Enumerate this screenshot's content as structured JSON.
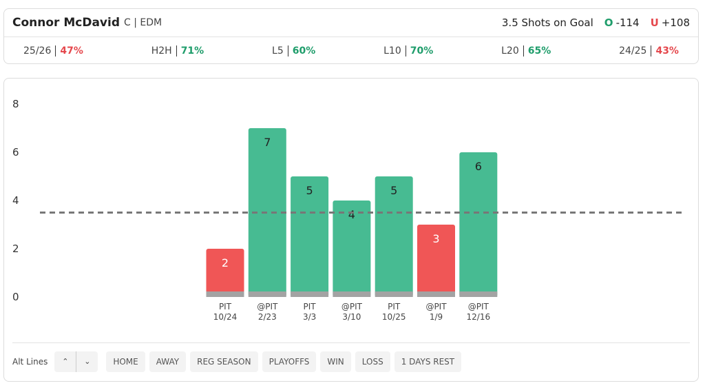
{
  "header": {
    "player": "Connor McDavid",
    "position": "C | EDM",
    "prop": "3.5 Shots on Goal",
    "over": {
      "label": "O",
      "odds": "-114"
    },
    "under": {
      "label": "U",
      "odds": "+108"
    }
  },
  "stats": [
    {
      "label": "25/26",
      "value": "47%",
      "color": "#e5484d"
    },
    {
      "label": "H2H",
      "value": "71%",
      "color": "#1f9d6b"
    },
    {
      "label": "L5",
      "value": "60%",
      "color": "#1f9d6b"
    },
    {
      "label": "L10",
      "value": "70%",
      "color": "#1f9d6b"
    },
    {
      "label": "L20",
      "value": "65%",
      "color": "#1f9d6b"
    },
    {
      "label": "24/25",
      "value": "43%",
      "color": "#e5484d"
    }
  ],
  "chart_data": {
    "type": "bar",
    "categories": [
      [
        "PIT",
        "10/24"
      ],
      [
        "@PIT",
        "2/23"
      ],
      [
        "PIT",
        "3/3"
      ],
      [
        "@PIT",
        "3/10"
      ],
      [
        "PIT",
        "10/25"
      ],
      [
        "@PIT",
        "1/9"
      ],
      [
        "@PIT",
        "12/16"
      ]
    ],
    "values": [
      2,
      7,
      5,
      4,
      5,
      3,
      6
    ],
    "colors": [
      "#f05656",
      "#47bb92",
      "#47bb92",
      "#47bb92",
      "#47bb92",
      "#f05656",
      "#47bb92"
    ],
    "label_colors": [
      "#ffffff",
      "#222222",
      "#222222",
      "#222222",
      "#222222",
      "#ffffff",
      "#222222"
    ],
    "line": 3.5,
    "ylim": [
      0,
      8
    ],
    "yticks": [
      0,
      2,
      4,
      6,
      8
    ]
  },
  "footer": {
    "alt_lines": "Alt Lines",
    "filters": [
      "HOME",
      "AWAY",
      "REG SEASON",
      "PLAYOFFS",
      "WIN",
      "LOSS",
      "1 DAYS REST"
    ]
  }
}
